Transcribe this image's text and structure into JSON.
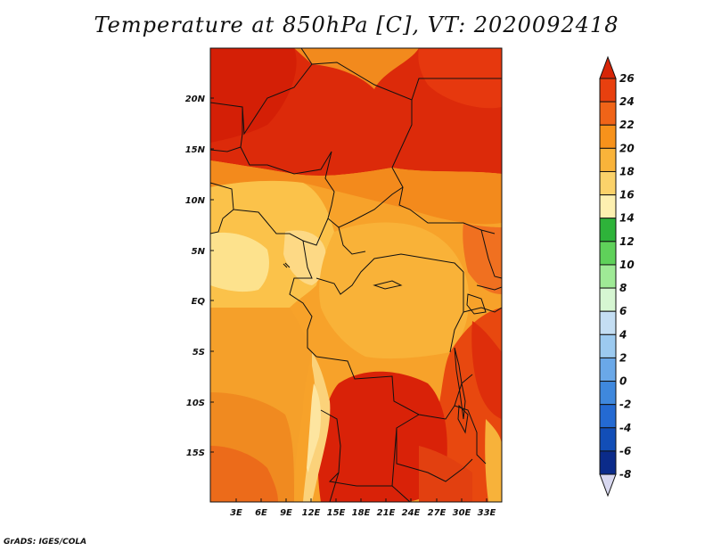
{
  "title": "Temperature at 850hPa [C], VT: 2020092418",
  "credit": "GrADS: IGES/COLA",
  "map": {
    "lat_labels": [
      "20N",
      "15N",
      "10N",
      "5N",
      "EQ",
      "5S",
      "10S",
      "15S"
    ],
    "lat_values": [
      20,
      15,
      10,
      5,
      0,
      -5,
      -10,
      -15
    ],
    "lon_labels": [
      "3E",
      "6E",
      "9E",
      "12E",
      "15E",
      "18E",
      "21E",
      "24E",
      "27E",
      "30E",
      "33E"
    ],
    "lon_values": [
      3,
      6,
      9,
      12,
      15,
      18,
      21,
      24,
      27,
      30,
      33
    ],
    "lon_range": [
      0,
      35
    ],
    "lat_range": [
      -20,
      25
    ]
  },
  "colorbar": {
    "levels": [
      "26",
      "24",
      "22",
      "20",
      "18",
      "16",
      "14",
      "12",
      "10",
      "8",
      "6",
      "4",
      "2",
      "0",
      "-2",
      "-4",
      "-6",
      "-8"
    ],
    "colors": [
      "#d72508",
      "#e8400f",
      "#f06418",
      "#f7921b",
      "#f9b33a",
      "#fbd26a",
      "#fdf0b0",
      "#2eb33a",
      "#5fd15a",
      "#9fea96",
      "#d6f6d2",
      "#c4def3",
      "#9ccaf0",
      "#6aa8e8",
      "#3f88dd",
      "#246ad2",
      "#124eb7",
      "#0b2b8a",
      "#080f5c"
    ]
  }
}
